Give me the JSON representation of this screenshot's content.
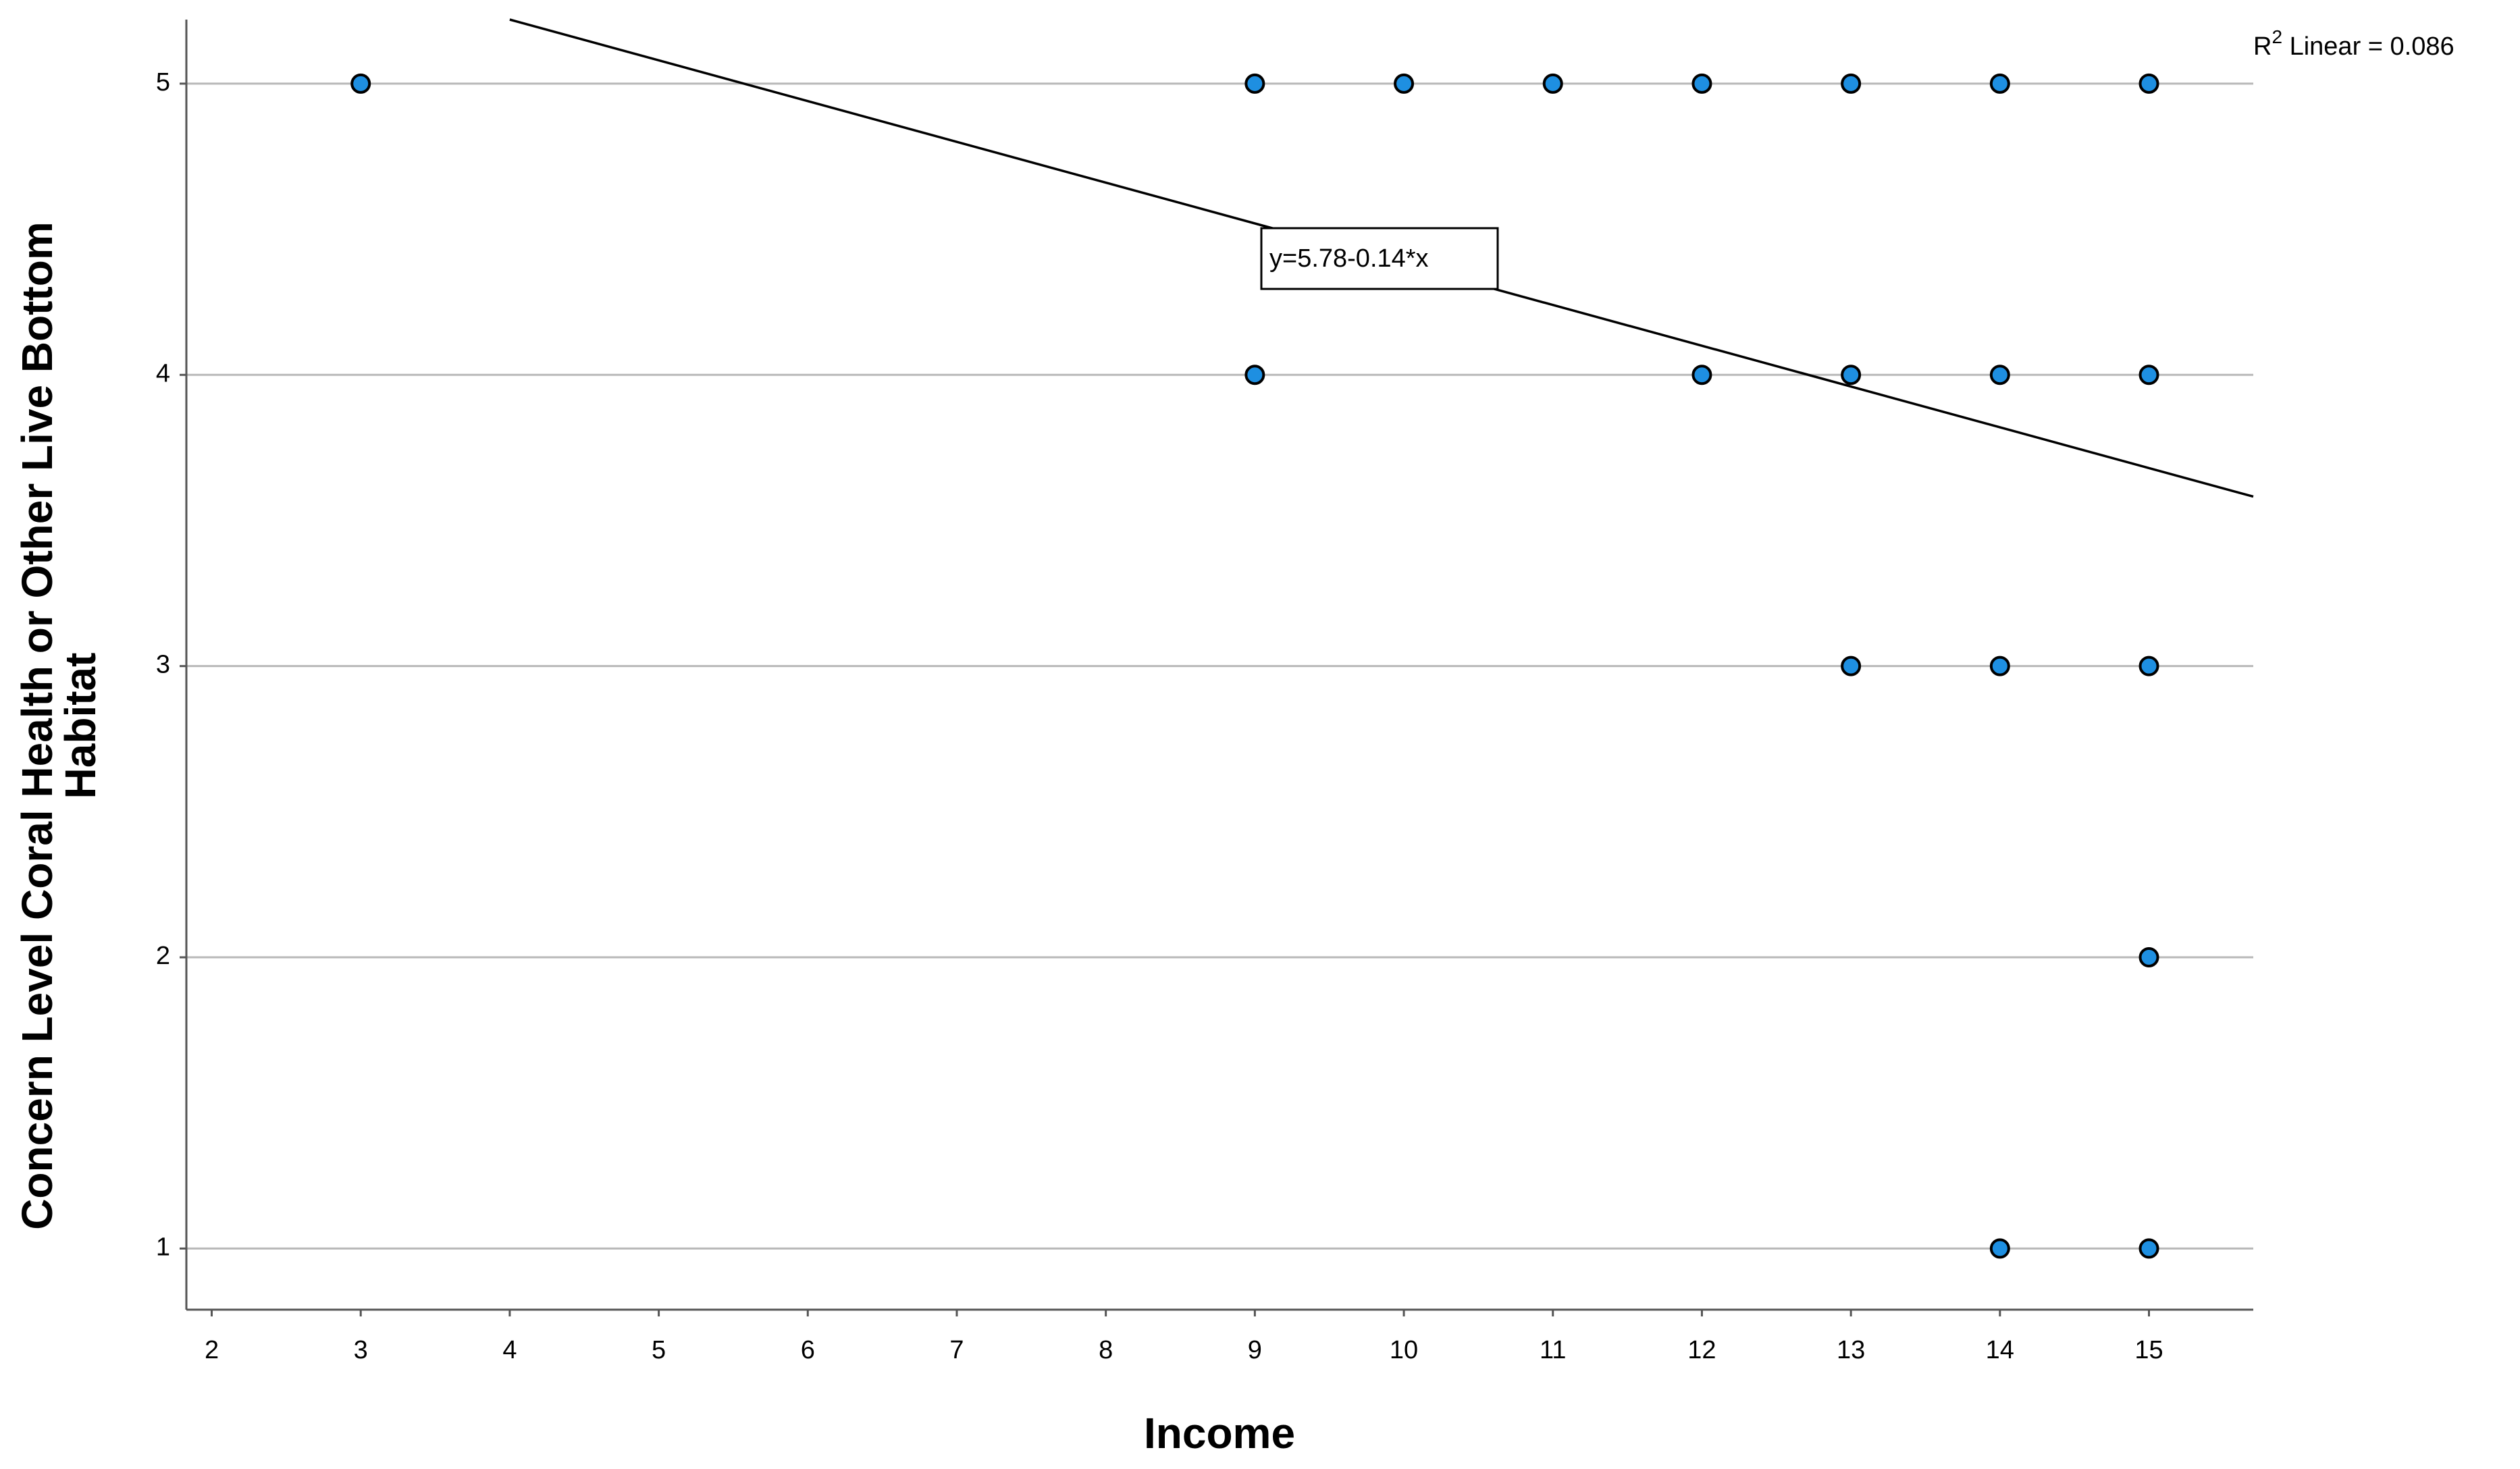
{
  "chart_data": {
    "type": "scatter",
    "xlabel": "Income",
    "ylabel": [
      "Concern Level Coral Health or Other Live Bottom",
      "Habitat"
    ],
    "x": [
      3,
      9,
      10,
      11,
      12,
      13,
      14,
      15,
      9,
      12,
      13,
      14,
      15,
      13,
      14,
      15,
      15,
      14,
      15
    ],
    "values": [
      5,
      5,
      5,
      5,
      5,
      5,
      5,
      5,
      4,
      4,
      4,
      4,
      4,
      3,
      3,
      3,
      2,
      1,
      1
    ],
    "color": "#1e8fe1",
    "xlim": [
      1.83,
      15.7
    ],
    "xticks": [
      2,
      3,
      4,
      5,
      6,
      7,
      8,
      9,
      10,
      11,
      12,
      13,
      14,
      15
    ],
    "ylim": [
      0.79,
      5.22
    ],
    "yticks": [
      1,
      2,
      3,
      4,
      5
    ],
    "grid": true,
    "fit": {
      "intercept": 5.78,
      "slope": -0.14,
      "label": "y=5.78-0.14*x"
    },
    "r_squared_label": {
      "prefix": "R",
      "superscript": "2",
      "text": " Linear = 0.086"
    }
  }
}
